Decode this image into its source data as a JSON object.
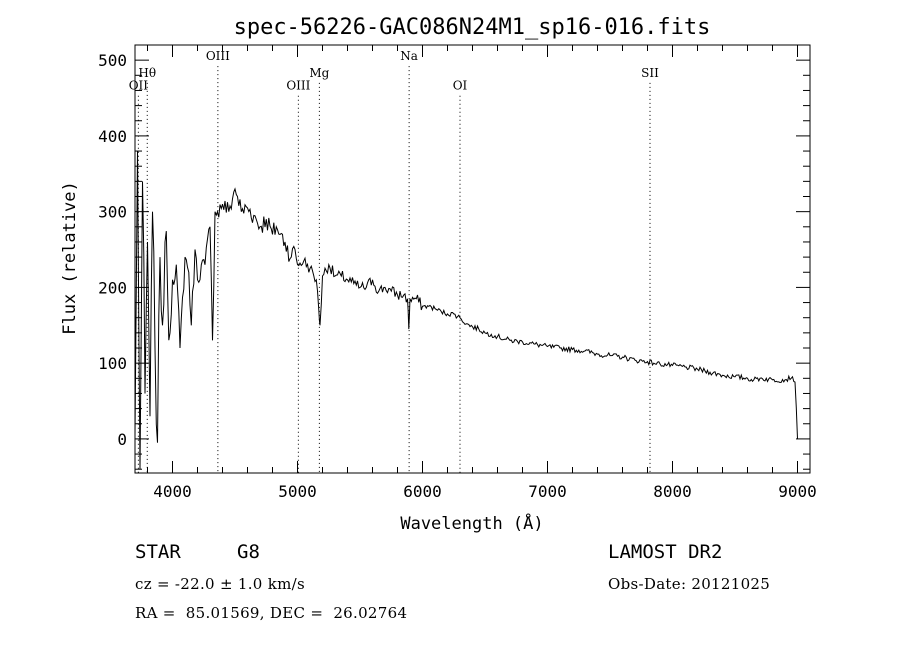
{
  "chart_data": {
    "type": "line",
    "title": "spec-56226-GAC086N24M1_sp16-016.fits",
    "xlabel": "Wavelength (Å)",
    "ylabel": "Flux (relative)",
    "xlim": [
      3700,
      9100
    ],
    "ylim": [
      -45,
      520
    ],
    "x_ticks": [
      4000,
      5000,
      6000,
      7000,
      8000,
      9000
    ],
    "y_ticks": [
      0,
      100,
      200,
      300,
      400,
      500
    ],
    "line_color": "#000000",
    "series": [
      {
        "x": [
          3700,
          3720,
          3740,
          3760,
          3780,
          3800,
          3820,
          3840,
          3860,
          3880,
          3900,
          3920,
          3940,
          3960,
          3980,
          4000,
          4030,
          4060,
          4100,
          4130,
          4150,
          4180,
          4200,
          4230,
          4260,
          4300,
          4320,
          4340,
          4360,
          4400,
          4450,
          4500,
          4520,
          4550,
          4600,
          4650,
          4700,
          4750,
          4800,
          4830,
          4860,
          4900,
          4950,
          4980,
          5000,
          5050,
          5100,
          5150,
          5170,
          5180,
          5200,
          5250,
          5300,
          5350,
          5400,
          5450,
          5500,
          5550,
          5600,
          5650,
          5700,
          5750,
          5800,
          5850,
          5880,
          5890,
          5900,
          5950,
          6000,
          6050,
          6100,
          6150,
          6200,
          6250,
          6300,
          6350,
          6400,
          6450,
          6500,
          6550,
          6600,
          6700,
          6800,
          6900,
          7000,
          7100,
          7200,
          7300,
          7400,
          7500,
          7600,
          7700,
          7800,
          7850,
          7900,
          8000,
          8100,
          8200,
          8300,
          8400,
          8500,
          8600,
          8650,
          8700,
          8800,
          8900,
          8960,
          8980,
          9000
        ],
        "y": [
          5,
          380,
          -40,
          340,
          60,
          260,
          30,
          300,
          120,
          -5,
          240,
          150,
          260,
          200,
          140,
          210,
          230,
          120,
          240,
          220,
          150,
          250,
          210,
          230,
          230,
          280,
          130,
          300,
          300,
          310,
          300,
          330,
          320,
          300,
          305,
          295,
          280,
          290,
          270,
          280,
          270,
          260,
          240,
          250,
          230,
          235,
          225,
          210,
          170,
          150,
          215,
          230,
          215,
          215,
          210,
          205,
          200,
          200,
          210,
          195,
          200,
          195,
          190,
          190,
          185,
          145,
          185,
          185,
          175,
          175,
          172,
          168,
          165,
          165,
          160,
          152,
          148,
          145,
          140,
          138,
          135,
          130,
          128,
          125,
          122,
          120,
          118,
          116,
          112,
          110,
          108,
          104,
          102,
          100,
          99,
          97,
          95,
          92,
          88,
          84,
          82,
          80,
          78,
          80,
          78,
          78,
          82,
          75,
          0
        ]
      }
    ],
    "lines": [
      {
        "label": "OII",
        "x": 3727,
        "label_y": 461
      },
      {
        "label": "Hθ",
        "x": 3798,
        "label_y": 478
      },
      {
        "label": "OIII",
        "x": 4363,
        "label_y": 500
      },
      {
        "label": "OIII",
        "x": 5007,
        "label_y": 461
      },
      {
        "label": "Mg",
        "x": 5175,
        "label_y": 478
      },
      {
        "label": "Na",
        "x": 5893,
        "label_y": 500
      },
      {
        "label": "OI",
        "x": 6300,
        "label_y": 461
      },
      {
        "label": "SII",
        "x": 7820,
        "label_y": 478
      }
    ]
  },
  "info": {
    "object_class": "STAR",
    "subclass": "G8",
    "release": "LAMOST DR2",
    "cz": "cz = -22.0 ± 1.0 km/s",
    "obs_date": "Obs-Date: 20121025",
    "coords": "RA =  85.01569, DEC =  26.02764"
  }
}
